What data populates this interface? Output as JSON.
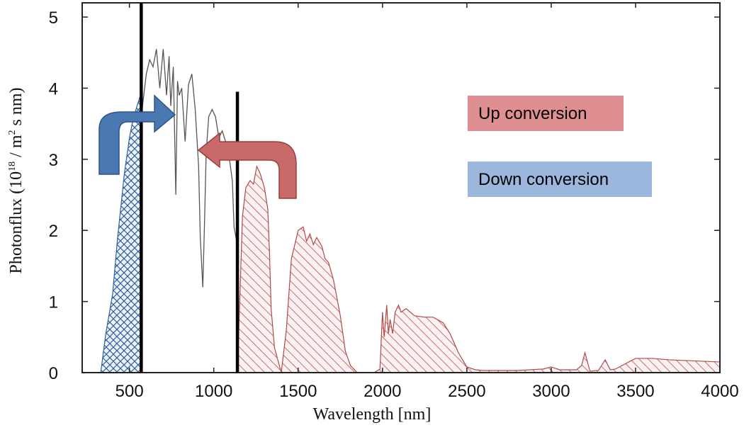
{
  "chart_data": {
    "type": "area",
    "xlabel": "Wavelength [nm]",
    "ylabel": {
      "prefix": "Photonflux (10",
      "exp1": "18",
      "mid": " / m",
      "exp2": "2",
      "suffix": " s nm)"
    },
    "xlim": [
      220,
      4000
    ],
    "ylim": [
      0,
      5.2
    ],
    "x_ticks": [
      500,
      1000,
      1500,
      2000,
      2500,
      3000,
      3500,
      4000
    ],
    "y_ticks": [
      0,
      1,
      2,
      3,
      4,
      5
    ],
    "grid": false,
    "vertical_lines_nm": [
      570,
      1140
    ],
    "legend": [
      {
        "name": "Up conversion",
        "color": "#df8f8f"
      },
      {
        "name": "Down conversion",
        "color": "#9bb7dd"
      }
    ],
    "series": [
      {
        "role": "down-conversion-region",
        "fill": "blue crosshatch",
        "color": "#2f5f9e",
        "x": [
          330,
          360,
          400,
          430,
          470,
          500,
          520,
          545,
          565,
          570
        ],
        "y": [
          0,
          0.55,
          1.1,
          1.9,
          2.8,
          3.3,
          3.55,
          3.75,
          3.9,
          3.9
        ]
      },
      {
        "role": "transmitted-spectrum",
        "fill": "none",
        "color": "#555555",
        "x": [
          570,
          600,
          620,
          640,
          660,
          680,
          700,
          720,
          735,
          745,
          760,
          775,
          785,
          795,
          810,
          830,
          850,
          870,
          890,
          910,
          920,
          935,
          945,
          955,
          970,
          990,
          1010,
          1030,
          1050,
          1070,
          1090,
          1110,
          1120,
          1135,
          1140
        ],
        "y": [
          3.6,
          4.2,
          4.4,
          4.3,
          4.55,
          4.0,
          4.55,
          3.9,
          4.45,
          3.75,
          4.3,
          2.5,
          4.1,
          3.9,
          4.0,
          3.25,
          4.05,
          4.2,
          3.7,
          2.9,
          1.9,
          1.2,
          2.1,
          3.1,
          3.6,
          3.7,
          3.6,
          3.3,
          3.4,
          3.25,
          3.05,
          2.7,
          2.05,
          1.85,
          2.0
        ]
      },
      {
        "role": "up-conversion-region",
        "fill": "red hatch",
        "color": "#b04a4a",
        "x": [
          1140,
          1170,
          1190,
          1215,
          1235,
          1255,
          1275,
          1300,
          1320,
          1330,
          1340,
          1360,
          1400,
          1430,
          1460,
          1500,
          1530,
          1550,
          1570,
          1590,
          1610,
          1640,
          1660,
          1680,
          1710,
          1750,
          1780,
          1810,
          1850,
          1900,
          1950,
          1985,
          2000,
          2010,
          2025,
          2035,
          2045,
          2060,
          2075,
          2095,
          2110,
          2140,
          2190,
          2250,
          2300,
          2360,
          2400,
          2450,
          2500,
          2550,
          2600,
          2800,
          2950,
          3000,
          3050,
          3150,
          3180,
          3200,
          3230,
          3280,
          3320,
          3350,
          3380,
          3500,
          3600,
          3700,
          3800,
          3900,
          4000
        ],
        "y": [
          0,
          2.2,
          2.6,
          2.7,
          2.65,
          2.9,
          2.8,
          2.6,
          2.3,
          1.7,
          0.9,
          0.35,
          0,
          0.6,
          1.6,
          2.0,
          2.05,
          1.85,
          1.95,
          1.8,
          1.9,
          1.78,
          1.6,
          1.55,
          1.3,
          0.8,
          0.3,
          0.1,
          0,
          0,
          0,
          0.05,
          0.85,
          0.5,
          0.95,
          0.55,
          0.75,
          0.55,
          0.85,
          0.95,
          0.85,
          0.9,
          0.8,
          0.78,
          0.78,
          0.7,
          0.55,
          0.28,
          0.08,
          0.04,
          0.03,
          0.03,
          0.05,
          0.08,
          0.04,
          0.04,
          0.1,
          0.28,
          0.02,
          0.03,
          0.18,
          0.04,
          0.05,
          0.2,
          0.2,
          0.18,
          0.17,
          0.16,
          0.15
        ]
      }
    ]
  }
}
